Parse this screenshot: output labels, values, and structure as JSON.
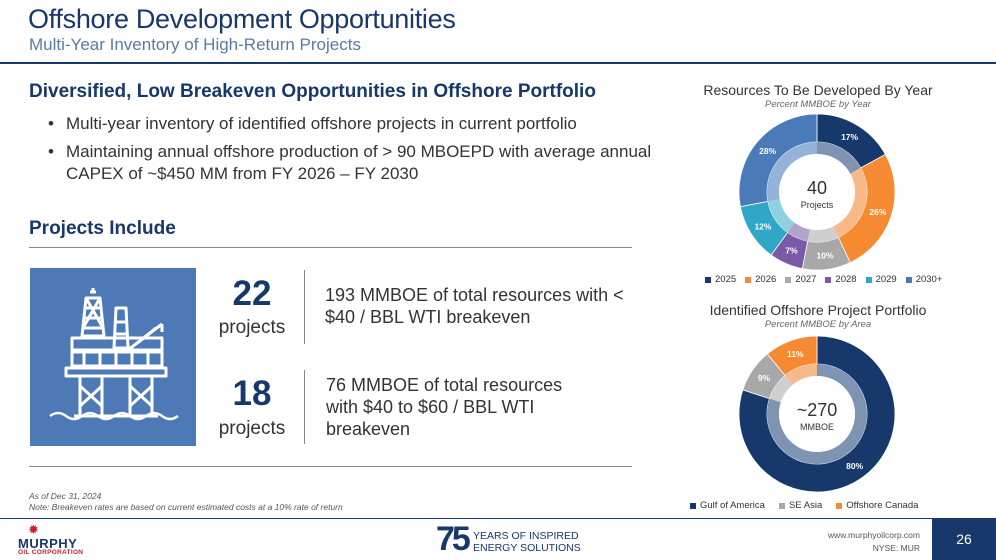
{
  "header": {
    "title": "Offshore Development Opportunities",
    "subtitle": "Multi-Year Inventory of High-Return Projects"
  },
  "section1": {
    "heading": "Diversified, Low Breakeven Opportunities in Offshore Portfolio",
    "bullets": [
      "Multi-year inventory of identified offshore projects in current portfolio",
      "Maintaining annual offshore production of > 90 MBOEPD with average annual CAPEX of ~$450 MM from FY 2026 – FY 2030"
    ]
  },
  "section2": {
    "heading": "Projects Include",
    "icon": "offshore-rig-icon",
    "stats": [
      {
        "number": "22",
        "label": "projects",
        "description": "193 MMBOE of total resources with < $40 / BBL WTI breakeven"
      },
      {
        "number": "18",
        "label": "projects",
        "description": "76 MMBOE of total resources with $40 to $60 / BBL WTI breakeven"
      }
    ]
  },
  "footnotes": {
    "asof": "As of Dec 31, 2024",
    "note": "Note: Breakeven rates are based on current estimated costs at a 10% rate of return"
  },
  "chart_data": [
    {
      "type": "pie",
      "title": "Resources To Be Developed By Year",
      "subtitle": "Percent MMBOE by Year",
      "center_value": "40",
      "center_label": "Projects",
      "categories": [
        "2025",
        "2026",
        "2027",
        "2028",
        "2029",
        "2030+"
      ],
      "values": [
        17,
        26,
        10,
        7,
        12,
        28
      ],
      "labels": [
        "17%",
        "26%",
        "10%",
        "7%",
        "12%",
        "28%"
      ],
      "colors": [
        "#16386b",
        "#f58a32",
        "#a8a8a8",
        "#7a5aa6",
        "#2fa8c8",
        "#4a7ab8"
      ],
      "inner_colors": [
        "#7f93b3",
        "#f8b98a",
        "#cfcfcf",
        "#b3a3ca",
        "#8fd0e2",
        "#95b3d9"
      ],
      "legend": "bottom"
    },
    {
      "type": "pie",
      "title": "Identified Offshore Project Portfolio",
      "subtitle": "Percent MMBOE by Area",
      "center_value": "~270",
      "center_label": "MMBOE",
      "categories": [
        "Gulf of America",
        "SE Asia",
        "Offshore Canada"
      ],
      "values": [
        80,
        9,
        11
      ],
      "labels": [
        "80%",
        "9%",
        "11%"
      ],
      "colors": [
        "#16386b",
        "#a8a8a8",
        "#f58a32"
      ],
      "inner_colors": [
        "#7f93b3",
        "#cfcfcf",
        "#f8b98a"
      ],
      "legend": "bottom"
    }
  ],
  "footer": {
    "logo_name": "MURPHY",
    "logo_sub": "OIL CORPORATION",
    "anniversary_number": "75",
    "anniversary_line1": "YEARS OF INSPIRED",
    "anniversary_line2": "ENERGY SOLUTIONS",
    "url": "www.murphyoilcorp.com",
    "ticker": "NYSE: MUR",
    "page": "26"
  }
}
